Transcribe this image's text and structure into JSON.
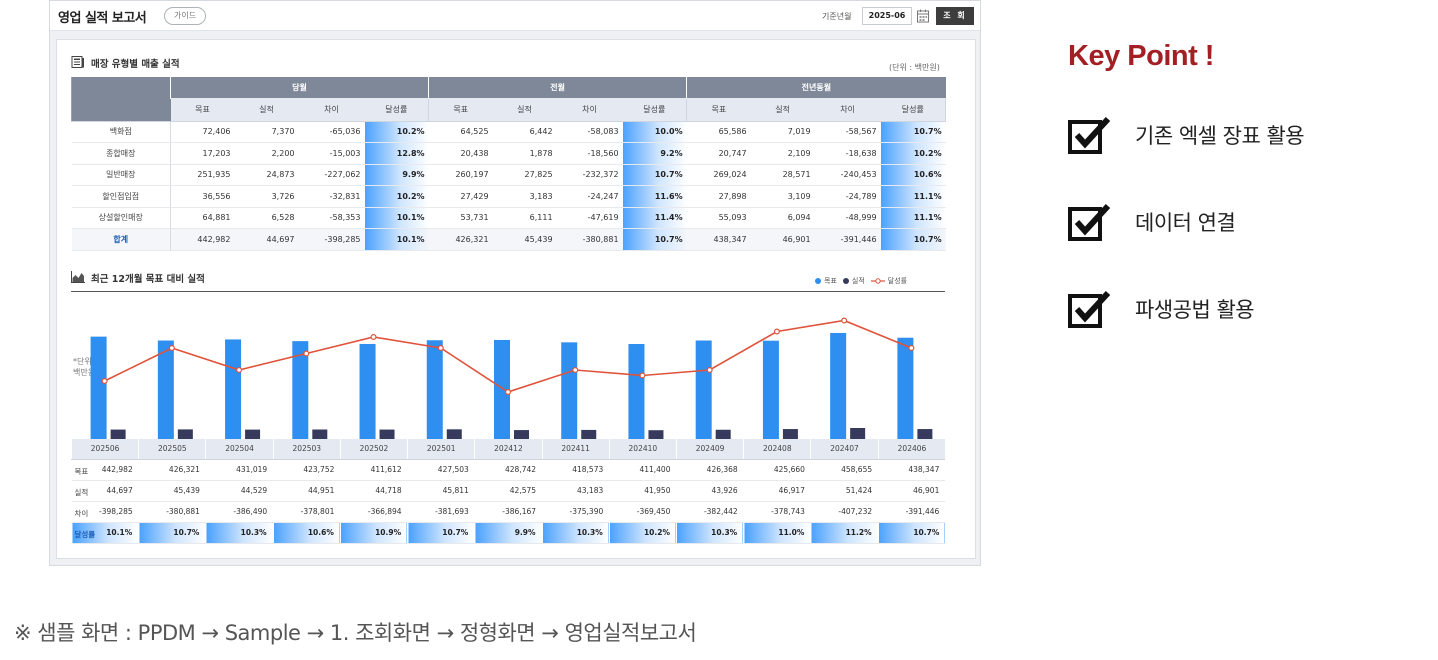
{
  "app": {
    "title": "영업 실적 보고서",
    "guide_label": "가이드",
    "date_label": "기준년월",
    "date_value": "2025-06",
    "query_label": "조 회"
  },
  "sales_section": {
    "title": "매장 유형별 매출 실적",
    "unit": "(단위 : 백만원)",
    "groups": [
      "당월",
      "전월",
      "전년동월"
    ],
    "sub_headers": [
      "목표",
      "실적",
      "차이",
      "달성률"
    ],
    "rows": [
      {
        "label": "백화점",
        "values": [
          "72,406",
          "7,370",
          "-65,036",
          "10.2%",
          "64,525",
          "6,442",
          "-58,083",
          "10.0%",
          "65,586",
          "7,019",
          "-58,567",
          "10.7%"
        ]
      },
      {
        "label": "종합매장",
        "values": [
          "17,203",
          "2,200",
          "-15,003",
          "12.8%",
          "20,438",
          "1,878",
          "-18,560",
          "9.2%",
          "20,747",
          "2,109",
          "-18,638",
          "10.2%"
        ]
      },
      {
        "label": "일반매장",
        "values": [
          "251,935",
          "24,873",
          "-227,062",
          "9.9%",
          "260,197",
          "27,825",
          "-232,372",
          "10.7%",
          "269,024",
          "28,571",
          "-240,453",
          "10.6%"
        ]
      },
      {
        "label": "할인점입점",
        "values": [
          "36,556",
          "3,726",
          "-32,831",
          "10.2%",
          "27,429",
          "3,183",
          "-24,247",
          "11.6%",
          "27,898",
          "3,109",
          "-24,789",
          "11.1%"
        ]
      },
      {
        "label": "상설할인매장",
        "values": [
          "64,881",
          "6,528",
          "-58,353",
          "10.1%",
          "53,731",
          "6,111",
          "-47,619",
          "11.4%",
          "55,093",
          "6,094",
          "-48,999",
          "11.1%"
        ]
      },
      {
        "label": "합계",
        "values": [
          "442,982",
          "44,697",
          "-398,285",
          "10.1%",
          "426,321",
          "45,439",
          "-380,881",
          "10.7%",
          "438,347",
          "46,901",
          "-391,446",
          "10.7%"
        ]
      }
    ]
  },
  "chart_section": {
    "title": "최근 12개월 목표 대비 실적",
    "unit_note": "*단위\n백만원",
    "legend": [
      "목표",
      "실적",
      "달성률"
    ],
    "row_labels": [
      "목표",
      "실적",
      "차이",
      "달성률"
    ]
  },
  "chart_data": {
    "type": "bar",
    "categories": [
      "202506",
      "202505",
      "202504",
      "202503",
      "202502",
      "202501",
      "202412",
      "202411",
      "202410",
      "202409",
      "202408",
      "202407",
      "202406"
    ],
    "series": [
      {
        "name": "목표",
        "type": "bar",
        "values": [
          442982,
          426321,
          431019,
          423752,
          411612,
          427503,
          428742,
          418573,
          411400,
          426368,
          425660,
          458655,
          438347
        ]
      },
      {
        "name": "실적",
        "type": "bar",
        "values": [
          44697,
          45439,
          44529,
          44951,
          44718,
          45811,
          42575,
          43183,
          41950,
          43926,
          46917,
          51424,
          46901
        ]
      },
      {
        "name": "달성률",
        "type": "line",
        "values": [
          10.1,
          10.7,
          10.3,
          10.6,
          10.9,
          10.7,
          9.9,
          10.3,
          10.2,
          10.3,
          11.0,
          11.2,
          10.7
        ]
      }
    ],
    "table": {
      "목표": [
        "442,982",
        "426,321",
        "431,019",
        "423,752",
        "411,612",
        "427,503",
        "428,742",
        "418,573",
        "411,400",
        "426,368",
        "425,660",
        "458,655",
        "438,347"
      ],
      "실적": [
        "44,697",
        "45,439",
        "44,529",
        "44,951",
        "44,718",
        "45,811",
        "42,575",
        "43,183",
        "41,950",
        "43,926",
        "46,917",
        "51,424",
        "46,901"
      ],
      "차이": [
        "-398,285",
        "-380,881",
        "-386,490",
        "-378,801",
        "-366,894",
        "-381,693",
        "-386,167",
        "-375,390",
        "-369,450",
        "-382,442",
        "-378,743",
        "-407,232",
        "-391,446"
      ],
      "달성률": [
        "10.1%",
        "10.7%",
        "10.3%",
        "10.6%",
        "10.9%",
        "10.7%",
        "9.9%",
        "10.3%",
        "10.2%",
        "10.3%",
        "11.0%",
        "11.2%",
        "10.7%"
      ]
    },
    "colors": {
      "target": "#2e8ff0",
      "actual": "#363b5e",
      "rate": "#e0533a"
    },
    "ylim": [
      0,
      480000
    ],
    "rate_range": [
      9.5,
      11.5
    ]
  },
  "key_point": {
    "title": "Key Point !",
    "items": [
      "기존 엑셀 장표 활용",
      "데이터 연결",
      "파생공법 활용"
    ],
    "icon": "checkbox-checked-icon"
  },
  "footer": {
    "note": "※ 샘플 화면 : PPDM → Sample → 1. 조회화면 → 정형화면 → 영업실적보고서"
  }
}
